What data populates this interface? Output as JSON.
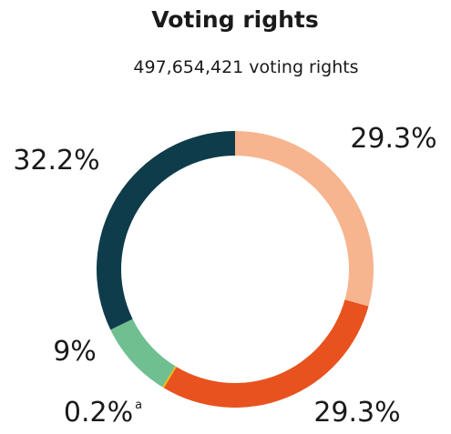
{
  "chart_data": {
    "type": "pie",
    "donut": true,
    "title": "Voting rights",
    "subtitle": "497,654,421 voting rights",
    "categories": [
      null,
      null,
      null,
      null,
      null
    ],
    "values": [
      29.3,
      29.3,
      0.2,
      9,
      32.2
    ],
    "value_labels": [
      "29.3%",
      "29.3%",
      "0.2%",
      "9%",
      "32.2%"
    ],
    "colors": [
      "#f6b48f",
      "#e8521f",
      "#f2b705",
      "#6fbf90",
      "#0e3c4b"
    ],
    "annotations": [
      {
        "text": "a"
      }
    ]
  }
}
